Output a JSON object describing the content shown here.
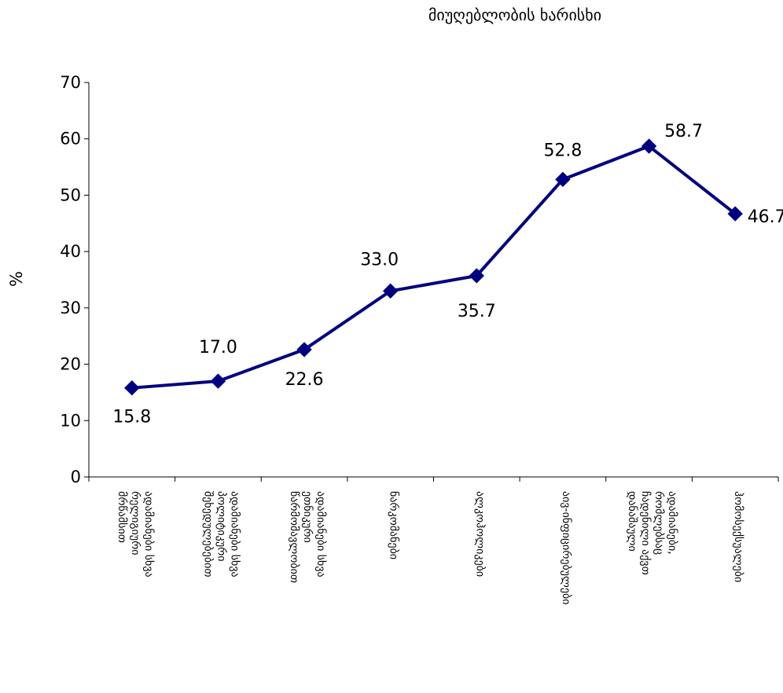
{
  "chart_data": {
    "type": "line",
    "title": "მიუღებლობის ხარისხი",
    "ylabel": "%",
    "ylim": [
      0,
      70
    ],
    "yticks": [
      0,
      10,
      20,
      30,
      40,
      50,
      60,
      70
    ],
    "grid": false,
    "categories": [
      "ადამიანები სხვა რელიგიური მრწამსით",
      "ადამიანები სხვა პოლიტიკური შეხედულებებით",
      "ადამიანები სხვა ეთნიკური წარმომავლობით",
      "ნარკომანები",
      "ალკოჰოლიკები",
      "აივ-ინფიცირებულები",
      "ადამიანები, რომლებსაც ჩადენილი აქვთ დანაშაული",
      "ჰომოსექსუალები"
    ],
    "series": [
      {
        "values": [
          15.8,
          17.0,
          22.6,
          33.0,
          35.7,
          52.8,
          58.7,
          46.7
        ]
      }
    ],
    "data_labels": [
      "15.8",
      "17.0",
      "22.6",
      "33.0",
      "35.7",
      "52.8",
      "58.7",
      "46.7"
    ],
    "line_color": "#000080"
  }
}
